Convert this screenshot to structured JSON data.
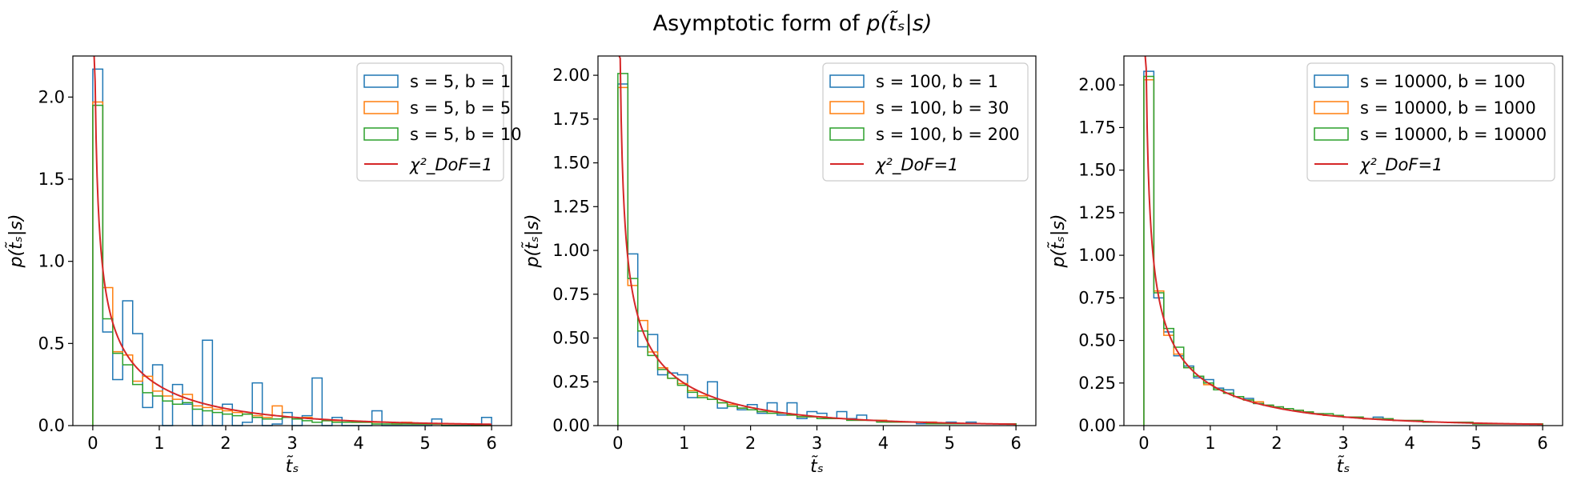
{
  "figure_title": {
    "prefix": "Asymptotic form of ",
    "math": "p(t̃ₛ|s)"
  },
  "chart_data": [
    {
      "type": "histogram",
      "xlabel": "t̃ₛ",
      "ylabel": "p(t̃ₛ|s)",
      "xlim": [
        -0.3,
        6.3
      ],
      "ylim": [
        0,
        2.25
      ],
      "xticks": [
        0,
        1,
        2,
        3,
        4,
        5,
        6
      ],
      "yticks": [
        0.0,
        0.5,
        1.0,
        1.5,
        2.0
      ],
      "ytick_labels": [
        "0.0",
        "0.5",
        "1.0",
        "1.5",
        "2.0"
      ],
      "legend_position": "upper right",
      "bin_width": 0.15,
      "series": [
        {
          "name": "s = 5, b = 1",
          "color": "#1f77b4",
          "values": [
            2.17,
            0.57,
            0.28,
            0.76,
            0.56,
            0.11,
            0.37,
            0.0,
            0.25,
            0.13,
            0.0,
            0.52,
            0.0,
            0.13,
            0.0,
            0.02,
            0.26,
            0.0,
            0.01,
            0.08,
            0.0,
            0.06,
            0.29,
            0.0,
            0.05,
            0.0,
            0.0,
            0.0,
            0.09,
            0.0,
            0.0,
            0.0,
            0.0,
            0.0,
            0.04,
            0.0,
            0.0,
            0.0,
            0.0,
            0.05
          ]
        },
        {
          "name": "s = 5, b = 5",
          "color": "#ff7f0e",
          "values": [
            1.97,
            0.84,
            0.45,
            0.43,
            0.27,
            0.3,
            0.21,
            0.18,
            0.16,
            0.19,
            0.12,
            0.11,
            0.1,
            0.09,
            0.08,
            0.07,
            0.06,
            0.05,
            0.12,
            0.05,
            0.04,
            0.05,
            0.04,
            0.03,
            0.03,
            0.03,
            0.02,
            0.02,
            0.02,
            0.02,
            0.01,
            0.02,
            0.01,
            0.01,
            0.01,
            0.01,
            0.01,
            0.01,
            0.0,
            0.0
          ]
        },
        {
          "name": "s = 5, b = 10",
          "color": "#2ca02c",
          "values": [
            1.95,
            0.65,
            0.44,
            0.37,
            0.25,
            0.2,
            0.18,
            0.15,
            0.13,
            0.14,
            0.1,
            0.09,
            0.08,
            0.07,
            0.06,
            0.07,
            0.05,
            0.04,
            0.04,
            0.05,
            0.04,
            0.03,
            0.02,
            0.03,
            0.02,
            0.02,
            0.02,
            0.02,
            0.01,
            0.01,
            0.01,
            0.01,
            0.01,
            0.01,
            0.01,
            0.0,
            0.0,
            0.0,
            0.0,
            0.0
          ]
        }
      ],
      "curve": {
        "name": "χ²_DoF=1",
        "color": "#d62728"
      }
    },
    {
      "type": "histogram",
      "xlabel": "t̃ₛ",
      "ylabel": "p(t̃ₛ|s)",
      "xlim": [
        -0.3,
        6.3
      ],
      "ylim": [
        0,
        2.11
      ],
      "xticks": [
        0,
        1,
        2,
        3,
        4,
        5,
        6
      ],
      "yticks": [
        0.0,
        0.25,
        0.5,
        0.75,
        1.0,
        1.25,
        1.5,
        1.75,
        2.0
      ],
      "ytick_labels": [
        "0.00",
        "0.25",
        "0.50",
        "0.75",
        "1.00",
        "1.25",
        "1.50",
        "1.75",
        "2.00"
      ],
      "legend_position": "upper right",
      "bin_width": 0.15,
      "series": [
        {
          "name": "s = 100, b = 1",
          "color": "#1f77b4",
          "values": [
            1.95,
            0.98,
            0.45,
            0.52,
            0.29,
            0.3,
            0.29,
            0.16,
            0.17,
            0.25,
            0.1,
            0.12,
            0.09,
            0.12,
            0.07,
            0.13,
            0.06,
            0.13,
            0.04,
            0.08,
            0.07,
            0.04,
            0.08,
            0.04,
            0.06,
            0.03,
            0.03,
            0.02,
            0.02,
            0.02,
            0.01,
            0.02,
            0.01,
            0.02,
            0.01,
            0.02,
            0.01,
            0.01,
            0.01,
            0.01
          ]
        },
        {
          "name": "s = 100, b = 30",
          "color": "#ff7f0e",
          "values": [
            1.93,
            0.8,
            0.6,
            0.42,
            0.33,
            0.27,
            0.24,
            0.2,
            0.17,
            0.15,
            0.13,
            0.12,
            0.1,
            0.09,
            0.08,
            0.08,
            0.07,
            0.06,
            0.05,
            0.05,
            0.05,
            0.04,
            0.04,
            0.03,
            0.03,
            0.03,
            0.03,
            0.02,
            0.02,
            0.02,
            0.02,
            0.02,
            0.01,
            0.01,
            0.01,
            0.01,
            0.01,
            0.01,
            0.01,
            0.01
          ]
        },
        {
          "name": "s = 100, b = 200",
          "color": "#2ca02c",
          "values": [
            2.01,
            0.84,
            0.54,
            0.4,
            0.32,
            0.27,
            0.23,
            0.19,
            0.16,
            0.15,
            0.13,
            0.11,
            0.1,
            0.09,
            0.08,
            0.07,
            0.07,
            0.06,
            0.05,
            0.05,
            0.04,
            0.04,
            0.04,
            0.03,
            0.03,
            0.03,
            0.02,
            0.02,
            0.02,
            0.02,
            0.02,
            0.01,
            0.01,
            0.01,
            0.01,
            0.01,
            0.01,
            0.01,
            0.01,
            0.01
          ]
        }
      ],
      "curve": {
        "name": "χ²_DoF=1",
        "color": "#d62728"
      }
    },
    {
      "type": "histogram",
      "xlabel": "t̃ₛ",
      "ylabel": "p(t̃ₛ|s)",
      "xlim": [
        -0.3,
        6.3
      ],
      "ylim": [
        0,
        2.17
      ],
      "xticks": [
        0,
        1,
        2,
        3,
        4,
        5,
        6
      ],
      "yticks": [
        0.0,
        0.25,
        0.5,
        0.75,
        1.0,
        1.25,
        1.5,
        1.75,
        2.0
      ],
      "ytick_labels": [
        "0.00",
        "0.25",
        "0.50",
        "0.75",
        "1.00",
        "1.25",
        "1.50",
        "1.75",
        "2.00"
      ],
      "legend_position": "upper right",
      "bin_width": 0.15,
      "series": [
        {
          "name": "s = 10000, b = 100",
          "color": "#1f77b4",
          "values": [
            2.08,
            0.75,
            0.55,
            0.41,
            0.35,
            0.28,
            0.27,
            0.22,
            0.21,
            0.17,
            0.16,
            0.13,
            0.12,
            0.11,
            0.1,
            0.09,
            0.08,
            0.07,
            0.06,
            0.06,
            0.05,
            0.05,
            0.04,
            0.05,
            0.04,
            0.03,
            0.03,
            0.03,
            0.02,
            0.02,
            0.02,
            0.02,
            0.02,
            0.01,
            0.01,
            0.01,
            0.01,
            0.01,
            0.01,
            0.01
          ]
        },
        {
          "name": "s = 10000, b = 1000",
          "color": "#ff7f0e",
          "values": [
            2.03,
            0.79,
            0.53,
            0.42,
            0.34,
            0.29,
            0.24,
            0.21,
            0.19,
            0.17,
            0.15,
            0.14,
            0.12,
            0.11,
            0.1,
            0.09,
            0.08,
            0.07,
            0.06,
            0.06,
            0.05,
            0.05,
            0.04,
            0.04,
            0.04,
            0.03,
            0.03,
            0.03,
            0.02,
            0.02,
            0.02,
            0.02,
            0.02,
            0.01,
            0.01,
            0.01,
            0.01,
            0.01,
            0.01,
            0.01
          ]
        },
        {
          "name": "s = 10000, b = 10000",
          "color": "#2ca02c",
          "values": [
            2.05,
            0.78,
            0.57,
            0.46,
            0.34,
            0.29,
            0.25,
            0.21,
            0.19,
            0.17,
            0.15,
            0.13,
            0.12,
            0.11,
            0.1,
            0.09,
            0.08,
            0.07,
            0.07,
            0.06,
            0.05,
            0.05,
            0.04,
            0.04,
            0.04,
            0.03,
            0.03,
            0.03,
            0.02,
            0.02,
            0.02,
            0.02,
            0.02,
            0.01,
            0.01,
            0.01,
            0.01,
            0.01,
            0.01,
            0.01
          ]
        }
      ],
      "curve": {
        "name": "χ²_DoF=1",
        "color": "#d62728"
      }
    }
  ]
}
